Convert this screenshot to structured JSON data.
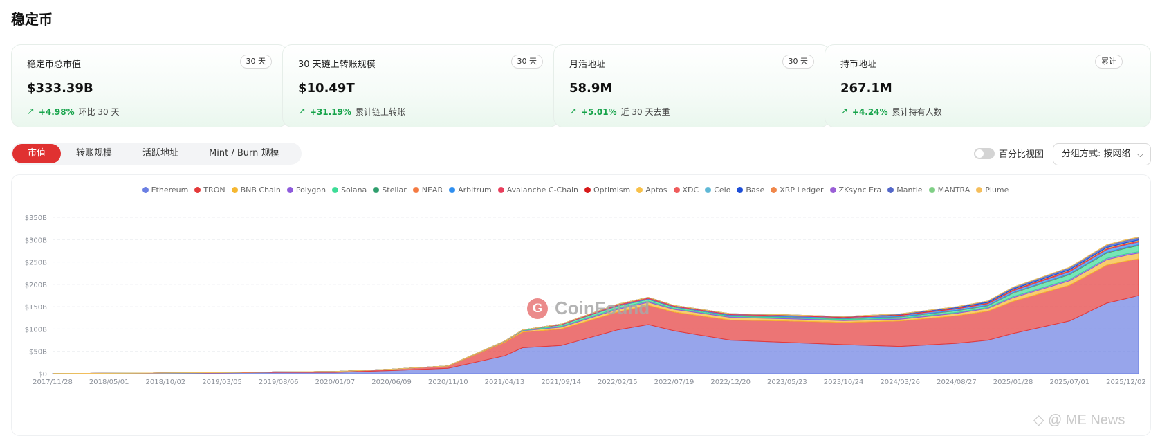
{
  "page": {
    "title": "稳定币"
  },
  "cards": [
    {
      "label": "稳定币总市值",
      "badge": "30 天",
      "value": "$333.39B",
      "arrow": "↗",
      "change": "+4.98%",
      "note": "环比 30 天"
    },
    {
      "label": "30 天链上转账规模",
      "badge": "30 天",
      "value": "$10.49T",
      "arrow": "↗",
      "change": "+31.19%",
      "note": "累计链上转账"
    },
    {
      "label": "月活地址",
      "badge": "30 天",
      "value": "58.9M",
      "arrow": "↗",
      "change": "+5.01%",
      "note": "近 30 天去重"
    },
    {
      "label": "持币地址",
      "badge": "累计",
      "value": "267.1M",
      "arrow": "↗",
      "change": "+4.24%",
      "note": "累计持有人数"
    }
  ],
  "tabs": [
    {
      "label": "市值",
      "active": true
    },
    {
      "label": "转账规模",
      "active": false
    },
    {
      "label": "活跃地址",
      "active": false
    },
    {
      "label": "Mint / Burn 规模",
      "active": false
    }
  ],
  "controls": {
    "percent_view_label": "百分比视图",
    "percent_view_on": false,
    "group_by_label": "分组方式: 按网络",
    "chevron": "⌵"
  },
  "watermark": {
    "logo_glyph": "G",
    "text": "CoinFound"
  },
  "footer": {
    "text": "◇ @ ME News"
  },
  "chart_data": {
    "type": "area",
    "stacked": true,
    "grid": true,
    "legend_position": "top-center",
    "x_ticks": [
      "2017/11/28",
      "2018/05/01",
      "2018/10/02",
      "2019/03/05",
      "2019/08/06",
      "2020/01/07",
      "2020/06/09",
      "2020/11/10",
      "2021/04/13",
      "2021/09/14",
      "2022/02/15",
      "2022/07/19",
      "2022/12/20",
      "2023/05/23",
      "2023/10/24",
      "2024/03/26",
      "2024/08/27",
      "2025/01/28",
      "2025/07/01",
      "2025/12/02"
    ],
    "y_ticks": [
      "$0",
      "$50B",
      "$100B",
      "$150B",
      "$200B",
      "$250B",
      "$300B",
      "$350B"
    ],
    "ylim": [
      0,
      350
    ],
    "x": [
      "2017/11/28",
      "2018/05/01",
      "2018/10/02",
      "2019/03/05",
      "2019/08/06",
      "2020/01/07",
      "2020/06/09",
      "2020/11/10",
      "2021/04/13",
      "2021/06/01",
      "2021/09/14",
      "2022/02/15",
      "2022/05/10",
      "2022/07/19",
      "2022/12/20",
      "2023/05/23",
      "2023/10/24",
      "2024/03/26",
      "2024/08/27",
      "2024/11/20",
      "2025/01/28",
      "2025/07/01",
      "2025/10/10",
      "2025/12/02",
      "2026/01/05"
    ],
    "series": [
      {
        "name": "Ethereum",
        "color": "#6b7fe3",
        "values": [
          0.5,
          1,
          1.5,
          2,
          3,
          3,
          7,
          12,
          40,
          58,
          63,
          98,
          110,
          96,
          75,
          70,
          65,
          61,
          68,
          75,
          90,
          118,
          158,
          168,
          175
        ]
      },
      {
        "name": "TRON",
        "color": "#e43a3a",
        "values": [
          0,
          0,
          0.2,
          0.5,
          1,
          2,
          3,
          5,
          30,
          35,
          37,
          40,
          43,
          42,
          45,
          48,
          50,
          57,
          62,
          65,
          72,
          80,
          85,
          84,
          82
        ]
      },
      {
        "name": "BNB Chain",
        "color": "#f5b731",
        "values": [
          0,
          0,
          0,
          0,
          0,
          0,
          0,
          0.5,
          2,
          3,
          4,
          6,
          7,
          6,
          6,
          5,
          4,
          4,
          5,
          6,
          8,
          10,
          12,
          13,
          13
        ]
      },
      {
        "name": "Polygon",
        "color": "#8e5bdc",
        "values": [
          0,
          0,
          0,
          0,
          0,
          0,
          0,
          0,
          0.5,
          1,
          2,
          2.5,
          2.5,
          2,
          2,
          2,
          2,
          2,
          2,
          2,
          2.5,
          3,
          3,
          3,
          3
        ]
      },
      {
        "name": "Solana",
        "color": "#3ddc97",
        "values": [
          0,
          0,
          0,
          0,
          0,
          0,
          0,
          0,
          0.5,
          1,
          3,
          5,
          4,
          3,
          2,
          2,
          2,
          3,
          4,
          4,
          8,
          11,
          12,
          13,
          14
        ]
      },
      {
        "name": "Stellar",
        "color": "#2f9e6d",
        "values": [
          0,
          0,
          0,
          0,
          0,
          0,
          0,
          0,
          0,
          0,
          0.2,
          0.3,
          0.3,
          0.3,
          0.3,
          0.3,
          0.3,
          0.4,
          0.5,
          0.5,
          0.6,
          0.8,
          1,
          1,
          1
        ]
      },
      {
        "name": "NEAR",
        "color": "#f47a42",
        "values": [
          0,
          0,
          0,
          0,
          0,
          0,
          0,
          0,
          0,
          0,
          0,
          0.2,
          0.2,
          0.2,
          0.2,
          0.3,
          0.3,
          0.3,
          0.4,
          0.5,
          0.5,
          0.6,
          0.7,
          0.7,
          0.7
        ]
      },
      {
        "name": "Arbitrum",
        "color": "#2f8ff0",
        "values": [
          0,
          0,
          0,
          0,
          0,
          0,
          0,
          0,
          0,
          0,
          0.5,
          1,
          1.2,
          1.2,
          1.5,
          2,
          2,
          2.5,
          3,
          3.5,
          4,
          5,
          6,
          6,
          6
        ]
      },
      {
        "name": "Avalanche C-Chain",
        "color": "#e83e5c",
        "values": [
          0,
          0,
          0,
          0,
          0,
          0,
          0,
          0,
          0,
          0,
          1,
          2,
          2,
          1.5,
          1.5,
          1.2,
          1.2,
          1.5,
          1.5,
          1.5,
          2,
          2,
          2,
          2,
          2
        ]
      },
      {
        "name": "Optimism",
        "color": "#d71a1a",
        "values": [
          0,
          0,
          0,
          0,
          0,
          0,
          0,
          0,
          0,
          0,
          0.2,
          0.5,
          0.5,
          0.5,
          0.5,
          0.6,
          0.6,
          0.7,
          0.7,
          0.7,
          0.8,
          0.8,
          0.8,
          0.8,
          0.8
        ]
      },
      {
        "name": "Aptos",
        "color": "#f8c14a",
        "values": [
          0,
          0,
          0,
          0,
          0,
          0,
          0,
          0,
          0,
          0,
          0,
          0,
          0,
          0,
          0,
          0.1,
          0.2,
          0.3,
          0.4,
          0.5,
          0.8,
          1,
          1.2,
          1.2,
          1.2
        ]
      },
      {
        "name": "XDC",
        "color": "#ef5b5b",
        "values": [
          0,
          0,
          0,
          0,
          0,
          0,
          0,
          0,
          0,
          0,
          0,
          0,
          0,
          0,
          0,
          0,
          0,
          0,
          0.1,
          0.1,
          0.1,
          0.2,
          0.2,
          0.2,
          0.2
        ]
      },
      {
        "name": "Celo",
        "color": "#5fb8d6",
        "values": [
          0,
          0,
          0,
          0,
          0,
          0,
          0,
          0,
          0,
          0,
          0.1,
          0.1,
          0.1,
          0.1,
          0.1,
          0.1,
          0.1,
          0.2,
          0.2,
          0.2,
          0.3,
          0.4,
          0.4,
          0.4,
          0.4
        ]
      },
      {
        "name": "Base",
        "color": "#1d4ed8",
        "values": [
          0,
          0,
          0,
          0,
          0,
          0,
          0,
          0,
          0,
          0,
          0,
          0,
          0,
          0,
          0,
          0,
          0.1,
          0.5,
          1.5,
          2.5,
          3,
          4,
          4.5,
          4.5,
          4.5
        ]
      },
      {
        "name": "XRP Ledger",
        "color": "#f0874a",
        "values": [
          0,
          0,
          0,
          0,
          0,
          0,
          0,
          0,
          0,
          0,
          0,
          0,
          0,
          0,
          0,
          0,
          0,
          0,
          0,
          0.1,
          0.2,
          0.3,
          0.4,
          0.5,
          0.5
        ]
      },
      {
        "name": "ZKsync Era",
        "color": "#9a5fd6",
        "values": [
          0,
          0,
          0,
          0,
          0,
          0,
          0,
          0,
          0,
          0,
          0,
          0,
          0,
          0,
          0.1,
          0.2,
          0.2,
          0.2,
          0.2,
          0.2,
          0.2,
          0.2,
          0.2,
          0.2,
          0.2
        ]
      },
      {
        "name": "Mantle",
        "color": "#5468c9",
        "values": [
          0,
          0,
          0,
          0,
          0,
          0,
          0,
          0,
          0,
          0,
          0,
          0,
          0,
          0,
          0,
          0.1,
          0.2,
          0.3,
          0.4,
          0.4,
          0.5,
          0.6,
          0.6,
          0.6,
          0.6
        ]
      },
      {
        "name": "MANTRA",
        "color": "#7fcf85",
        "values": [
          0,
          0,
          0,
          0,
          0,
          0,
          0,
          0,
          0,
          0,
          0,
          0,
          0,
          0,
          0,
          0,
          0,
          0,
          0,
          0,
          0.1,
          0.2,
          0.2,
          0.2,
          0.2
        ]
      },
      {
        "name": "Plume",
        "color": "#f5be5b",
        "values": [
          0,
          0,
          0,
          0,
          0,
          0,
          0,
          0,
          0,
          0,
          0,
          0,
          0,
          0,
          0,
          0,
          0,
          0,
          0,
          0,
          0,
          0.3,
          0.5,
          0.6,
          0.6
        ]
      }
    ]
  }
}
